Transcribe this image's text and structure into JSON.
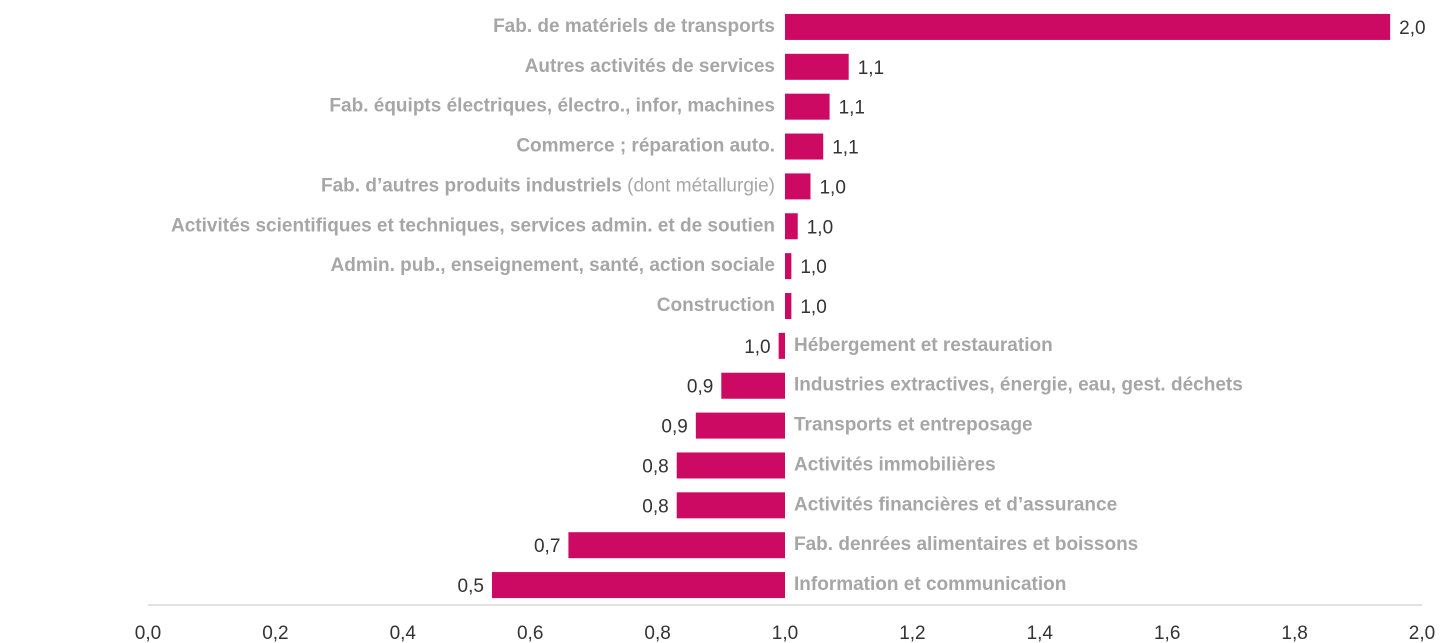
{
  "chart_data": {
    "type": "bar",
    "orientation": "horizontal",
    "categories": [
      "Fab. de matériels de transports",
      "Autres activités de services",
      "Fab. équipts électriques, électro., infor, machines",
      "Commerce ; réparation auto.",
      "Fab. d’autres produits industriels",
      "Activités scientifiques et techniques, services admin. et de soutien",
      "Admin. pub., enseignement, santé, action sociale",
      "Construction",
      "Hébergement et restauration",
      "Industries extractives, énergie, eau, gest. déchets",
      "Transports et entreposage",
      "Activités immobilières",
      "Activités financières et d’assurance",
      "Fab. denrées alimentaires et boissons",
      "Information et communication"
    ],
    "category_notes": [
      null,
      null,
      null,
      null,
      "(dont métallurgie)",
      null,
      null,
      null,
      null,
      null,
      null,
      null,
      null,
      null,
      null
    ],
    "values": [
      1.95,
      1.1,
      1.07,
      1.06,
      1.04,
      1.02,
      1.01,
      1.01,
      0.99,
      0.9,
      0.86,
      0.83,
      0.83,
      0.66,
      0.54
    ],
    "value_labels": [
      "2,0",
      "1,1",
      "1,1",
      "1,1",
      "1,0",
      "1,0",
      "1,0",
      "1,0",
      "1,0",
      "0,9",
      "0,9",
      "0,8",
      "0,8",
      "0,7",
      "0,5"
    ],
    "base": 1,
    "color": "#cc0a63",
    "xlim": [
      0,
      2
    ],
    "xticks": [
      {
        "value": 0,
        "label": "0,0"
      },
      {
        "value": 0.2,
        "label": "0,2"
      },
      {
        "value": 0.4,
        "label": "0,4"
      },
      {
        "value": 0.6,
        "label": "0,6"
      },
      {
        "value": 0.8,
        "label": "0,8"
      },
      {
        "value": 1,
        "label": "1,0"
      },
      {
        "value": 1.2,
        "label": "1,2"
      },
      {
        "value": 1.4,
        "label": "1,4"
      },
      {
        "value": 1.6,
        "label": "1,6"
      },
      {
        "value": 1.8,
        "label": "1,8"
      },
      {
        "value": 2,
        "label": "2,0"
      }
    ],
    "grid": false
  }
}
